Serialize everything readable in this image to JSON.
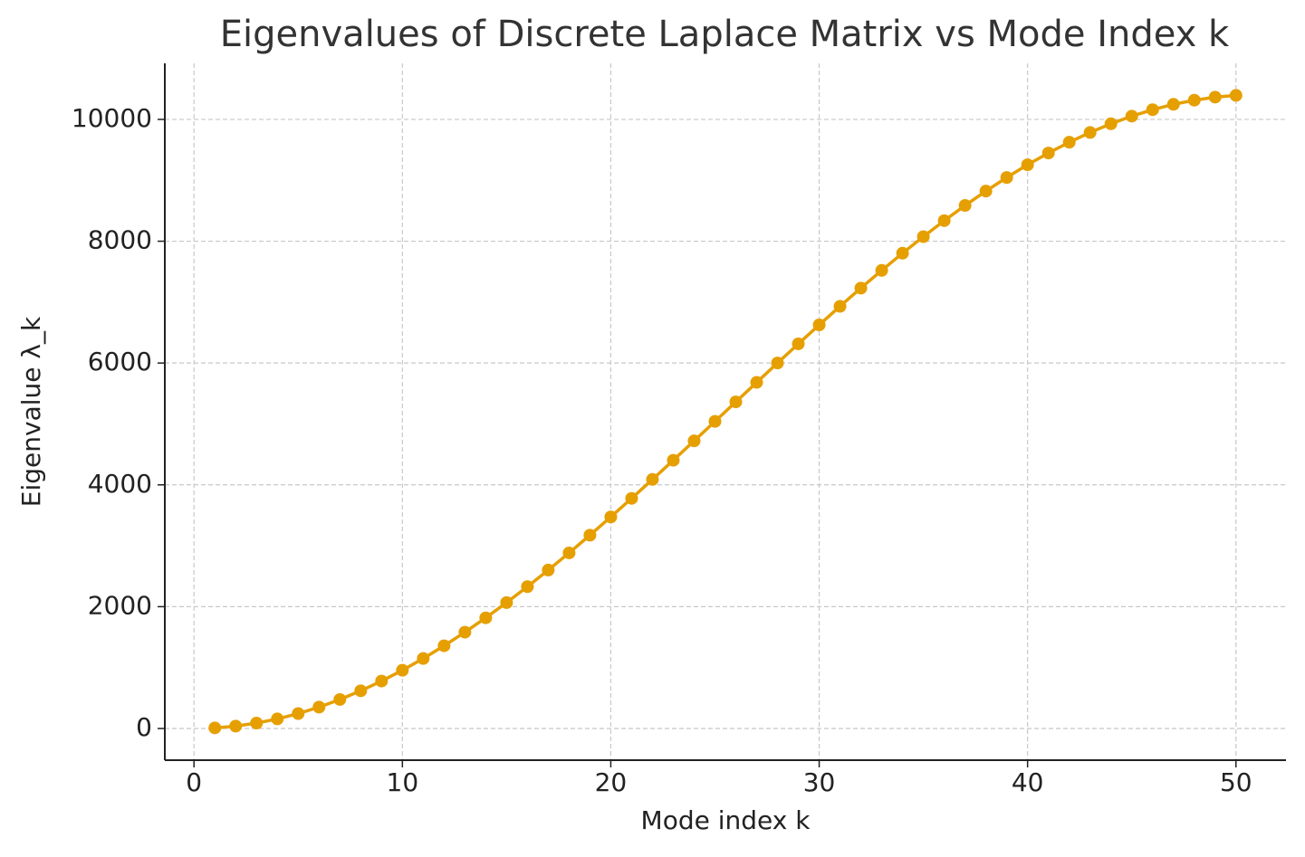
{
  "chart_data": {
    "type": "line",
    "title": "Eigenvalues of Discrete Laplace Matrix vs Mode Index k",
    "xlabel": "Mode index k",
    "ylabel": "Eigenvalue λ_k",
    "x": [
      1,
      2,
      3,
      4,
      5,
      6,
      7,
      8,
      9,
      10,
      11,
      12,
      13,
      14,
      15,
      16,
      17,
      18,
      19,
      20,
      21,
      22,
      23,
      24,
      25,
      26,
      27,
      28,
      29,
      30,
      31,
      32,
      33,
      34,
      35,
      36,
      37,
      38,
      39,
      40,
      41,
      42,
      43,
      44,
      45,
      46,
      47,
      48,
      49,
      50
    ],
    "series": [
      {
        "name": "Eigenvalue λ_k",
        "color": "#e69f00",
        "values": [
          10,
          39,
          89,
          157,
          245,
          351,
          476,
          619,
          779,
          956,
          1149,
          1358,
          1581,
          1817,
          2067,
          2329,
          2601,
          2883,
          3174,
          3473,
          3778,
          4089,
          4404,
          4722,
          5042,
          5362,
          5682,
          6000,
          6315,
          6626,
          6931,
          7230,
          7521,
          7803,
          8075,
          8337,
          8587,
          8823,
          9046,
          9255,
          9448,
          9625,
          9785,
          9928,
          10053,
          10159,
          10247,
          10315,
          10365,
          10394
        ]
      }
    ],
    "xlim": [
      -1.4,
      52.4
    ],
    "xticks": [
      0,
      10,
      20,
      30,
      40,
      50
    ],
    "ylim": [
      -520,
      10920
    ],
    "yticks": [
      0,
      2000,
      4000,
      6000,
      8000,
      10000
    ],
    "grid": true
  }
}
